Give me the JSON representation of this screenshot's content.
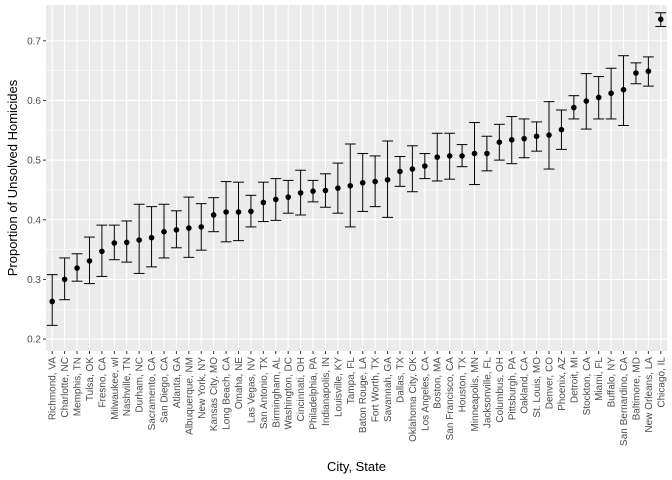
{
  "chart_data": {
    "type": "scatter",
    "xlabel": "City, State",
    "ylabel": "Proportion of Unsolved Homicides",
    "ylim": [
      0.18,
      0.76
    ],
    "yticks": [
      0.2,
      0.3,
      0.4,
      0.5,
      0.6,
      0.7
    ],
    "grid": true,
    "colors": {
      "panel": "#ebebeb",
      "grid": "#ffffff",
      "point": "#000000",
      "tick_text": "#4d4d4d"
    },
    "points": [
      {
        "city": "Richmond, VA",
        "estimate": 0.263,
        "low": 0.223,
        "high": 0.308
      },
      {
        "city": "Charlotte, NC",
        "estimate": 0.3,
        "low": 0.266,
        "high": 0.336
      },
      {
        "city": "Memphis, TN",
        "estimate": 0.319,
        "low": 0.297,
        "high": 0.343
      },
      {
        "city": "Tulsa, OK",
        "estimate": 0.331,
        "low": 0.293,
        "high": 0.371
      },
      {
        "city": "Fresno, CA",
        "estimate": 0.347,
        "low": 0.305,
        "high": 0.391
      },
      {
        "city": "Milwaukee, wI",
        "estimate": 0.361,
        "low": 0.333,
        "high": 0.391
      },
      {
        "city": "Nashville, TN",
        "estimate": 0.362,
        "low": 0.329,
        "high": 0.398
      },
      {
        "city": "Durham, NC",
        "estimate": 0.366,
        "low": 0.31,
        "high": 0.426
      },
      {
        "city": "Sacramento, CA",
        "estimate": 0.37,
        "low": 0.321,
        "high": 0.422
      },
      {
        "city": "San Diego, CA",
        "estimate": 0.38,
        "low": 0.336,
        "high": 0.426
      },
      {
        "city": "Atlanta, GA",
        "estimate": 0.383,
        "low": 0.353,
        "high": 0.415
      },
      {
        "city": "Albuquerque, NM",
        "estimate": 0.386,
        "low": 0.337,
        "high": 0.438
      },
      {
        "city": "New York, NY",
        "estimate": 0.388,
        "low": 0.349,
        "high": 0.427
      },
      {
        "city": "Kansas City, MO",
        "estimate": 0.408,
        "low": 0.38,
        "high": 0.437
      },
      {
        "city": "Long Beach, CA",
        "estimate": 0.413,
        "low": 0.363,
        "high": 0.464
      },
      {
        "city": "Omaha, NE",
        "estimate": 0.413,
        "low": 0.365,
        "high": 0.463
      },
      {
        "city": "Las Vegas, NV",
        "estimate": 0.414,
        "low": 0.388,
        "high": 0.441
      },
      {
        "city": "San Antonio, TX",
        "estimate": 0.429,
        "low": 0.397,
        "high": 0.463
      },
      {
        "city": "Birmingham, AL",
        "estimate": 0.434,
        "low": 0.399,
        "high": 0.469
      },
      {
        "city": "Washington, DC",
        "estimate": 0.438,
        "low": 0.411,
        "high": 0.466
      },
      {
        "city": "Cincinnati, OH",
        "estimate": 0.445,
        "low": 0.408,
        "high": 0.483
      },
      {
        "city": "Philadelphia, PA",
        "estimate": 0.448,
        "low": 0.43,
        "high": 0.466
      },
      {
        "city": "Indianapolis, IN",
        "estimate": 0.449,
        "low": 0.421,
        "high": 0.477
      },
      {
        "city": "Louisville, KY",
        "estimate": 0.453,
        "low": 0.411,
        "high": 0.495
      },
      {
        "city": "Tampa, FL",
        "estimate": 0.457,
        "low": 0.388,
        "high": 0.527
      },
      {
        "city": "Baton Rouge, LA",
        "estimate": 0.462,
        "low": 0.414,
        "high": 0.511
      },
      {
        "city": "Fort Worth, TX",
        "estimate": 0.464,
        "low": 0.422,
        "high": 0.507
      },
      {
        "city": "Savannah, GA",
        "estimate": 0.467,
        "low": 0.404,
        "high": 0.532
      },
      {
        "city": "Dallas, TX",
        "estimate": 0.481,
        "low": 0.456,
        "high": 0.506
      },
      {
        "city": "Oklahoma City, OK",
        "estimate": 0.485,
        "low": 0.447,
        "high": 0.524
      },
      {
        "city": "Los Angeles, CA",
        "estimate": 0.49,
        "low": 0.469,
        "high": 0.511
      },
      {
        "city": "Boston, MA",
        "estimate": 0.505,
        "low": 0.465,
        "high": 0.545
      },
      {
        "city": "San Francisco, CA",
        "estimate": 0.507,
        "low": 0.468,
        "high": 0.545
      },
      {
        "city": "Houston, TX",
        "estimate": 0.507,
        "low": 0.489,
        "high": 0.526
      },
      {
        "city": "Minneapolis, MN",
        "estimate": 0.511,
        "low": 0.459,
        "high": 0.563
      },
      {
        "city": "Jacksonville, FL",
        "estimate": 0.511,
        "low": 0.482,
        "high": 0.54
      },
      {
        "city": "Columbus, OH",
        "estimate": 0.53,
        "low": 0.5,
        "high": 0.56
      },
      {
        "city": "Pittsburgh, PA",
        "estimate": 0.534,
        "low": 0.494,
        "high": 0.573
      },
      {
        "city": "Oakland, CA",
        "estimate": 0.536,
        "low": 0.504,
        "high": 0.569
      },
      {
        "city": "St. Louis, MO",
        "estimate": 0.54,
        "low": 0.515,
        "high": 0.564
      },
      {
        "city": "Denver, CO",
        "estimate": 0.542,
        "low": 0.485,
        "high": 0.598
      },
      {
        "city": "Phoenix, AZ",
        "estimate": 0.551,
        "low": 0.518,
        "high": 0.584
      },
      {
        "city": "Detroit, MI",
        "estimate": 0.588,
        "low": 0.569,
        "high": 0.608
      },
      {
        "city": "Stockton, CA",
        "estimate": 0.599,
        "low": 0.552,
        "high": 0.645
      },
      {
        "city": "Miami, FL",
        "estimate": 0.605,
        "low": 0.569,
        "high": 0.64
      },
      {
        "city": "Buffalo, NY",
        "estimate": 0.612,
        "low": 0.569,
        "high": 0.654
      },
      {
        "city": "San Bernardino, CA",
        "estimate": 0.618,
        "low": 0.558,
        "high": 0.675
      },
      {
        "city": "Baltimore, MD",
        "estimate": 0.646,
        "low": 0.628,
        "high": 0.663
      },
      {
        "city": "New Orleans, LA",
        "estimate": 0.649,
        "low": 0.624,
        "high": 0.673
      },
      {
        "city": "Chicago, IL",
        "estimate": 0.736,
        "low": 0.724,
        "high": 0.747
      }
    ]
  }
}
